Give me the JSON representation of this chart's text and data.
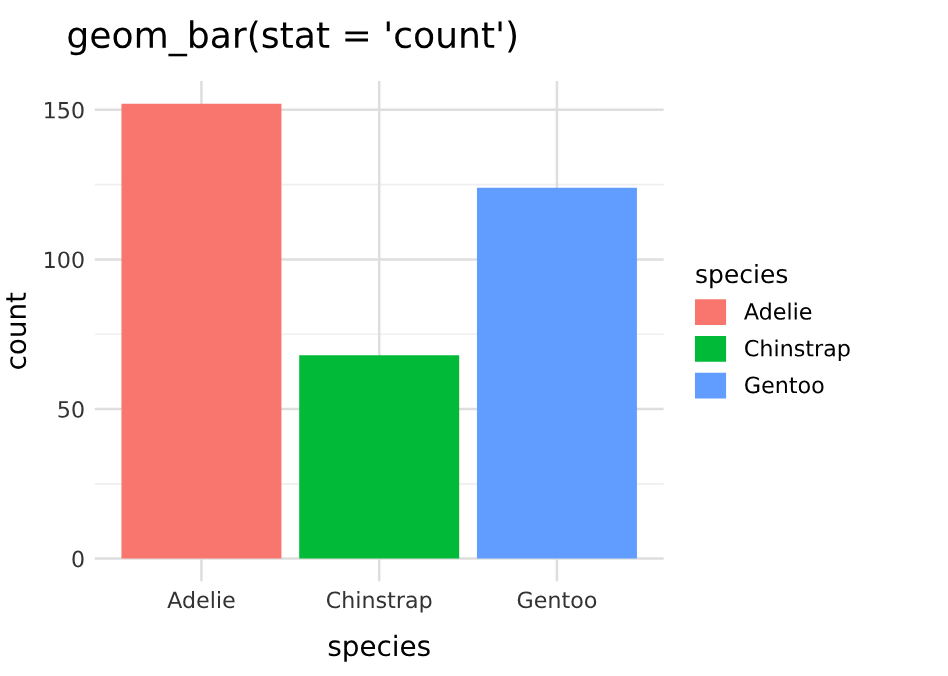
{
  "chart_data": {
    "type": "bar",
    "title": "geom_bar(stat = 'count')",
    "xlabel": "species",
    "ylabel": "count",
    "legend_title": "species",
    "categories": [
      "Adelie",
      "Chinstrap",
      "Gentoo"
    ],
    "series": [
      {
        "name": "Adelie",
        "color": "#f8766d",
        "values": [
          152,
          null,
          null
        ]
      },
      {
        "name": "Chinstrap",
        "color": "#00ba38",
        "values": [
          null,
          68,
          null
        ]
      },
      {
        "name": "Gentoo",
        "color": "#619cff",
        "values": [
          null,
          null,
          124
        ]
      }
    ],
    "ylim": [
      -7.6,
      159.6
    ],
    "yticks": [
      0,
      50,
      100,
      150
    ],
    "grid": true,
    "legend": "right"
  }
}
